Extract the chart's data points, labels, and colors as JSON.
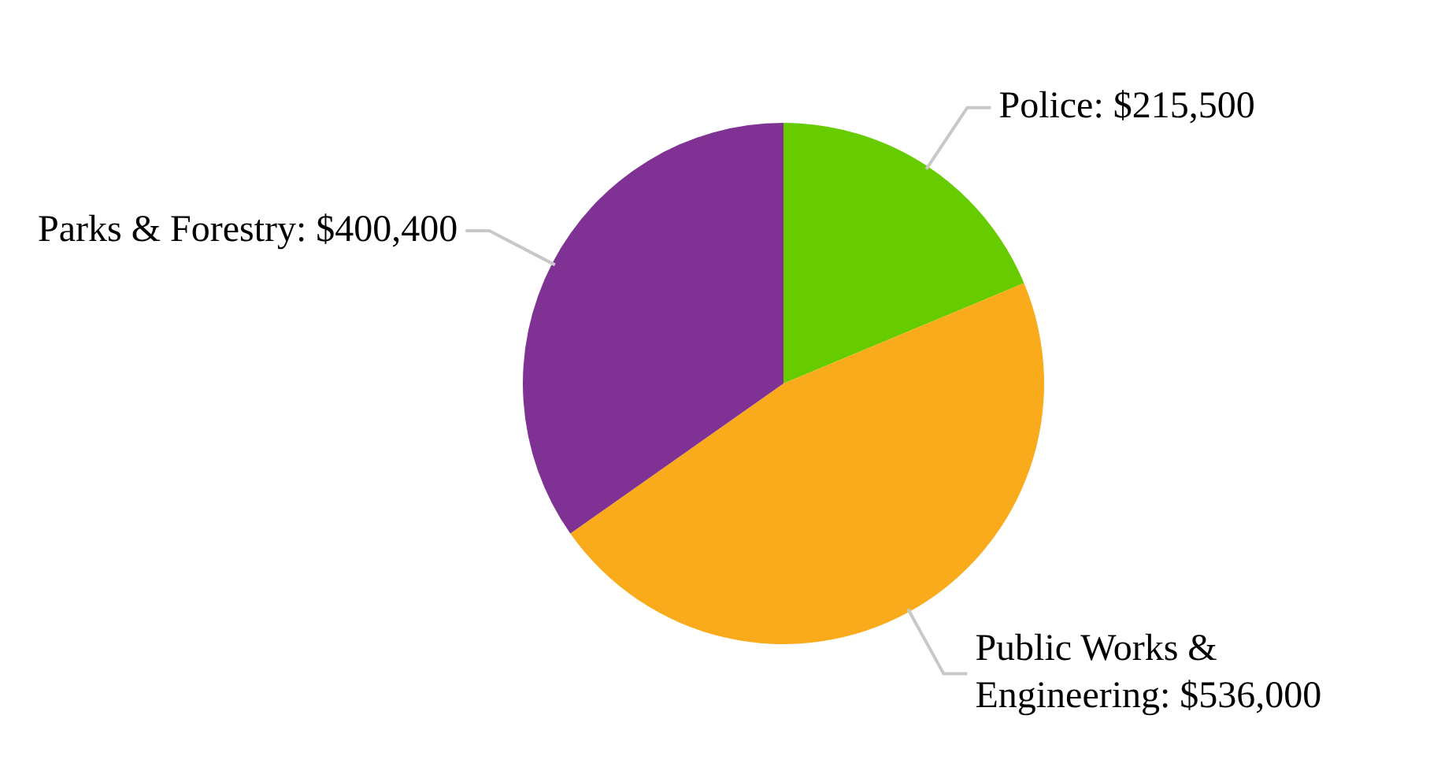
{
  "chart_data": {
    "type": "pie",
    "categories": [
      "Police",
      "Public Works & Engineering",
      "Parks & Forestry"
    ],
    "values": [
      215500,
      536000,
      400400
    ],
    "value_labels": [
      "$215,500",
      "$536,000",
      "$400,400"
    ],
    "colors": [
      "#66cc00",
      "#f9ab1c",
      "#7f3194"
    ],
    "data_labels": true,
    "legend": false
  }
}
